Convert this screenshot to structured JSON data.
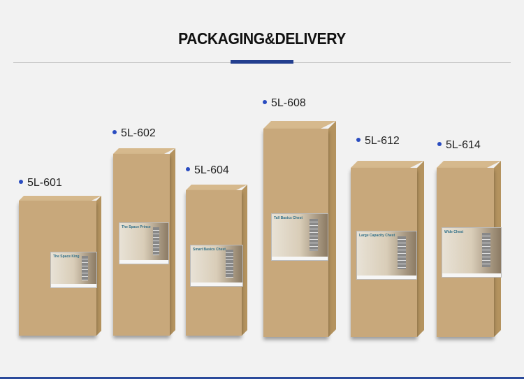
{
  "header": {
    "title": "PACKAGING&DELIVERY",
    "accent_color": "#233f8f"
  },
  "products": [
    {
      "model": "5L-601",
      "sticker": "The Space King"
    },
    {
      "model": "5L-602",
      "sticker": "The Space Prince"
    },
    {
      "model": "5L-604",
      "sticker": "Smart Basics Chest"
    },
    {
      "model": "5L-608",
      "sticker": "Tall Basics Chest"
    },
    {
      "model": "5L-612",
      "sticker": "Large Capacity Chest"
    },
    {
      "model": "5L-614",
      "sticker": "Wide Chest"
    }
  ],
  "colors": {
    "box": "#c8a87b",
    "bullet": "#2a4cc0",
    "background": "#f2f2f2"
  }
}
